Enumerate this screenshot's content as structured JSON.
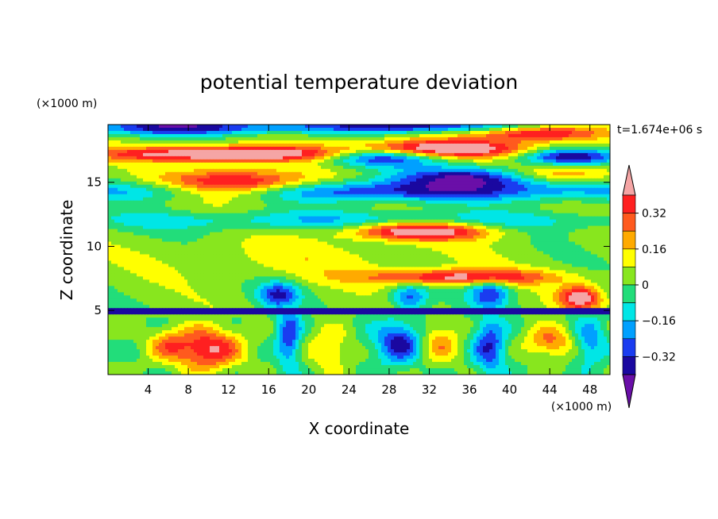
{
  "chart_data": {
    "type": "heatmap",
    "title": "potential temperature deviation",
    "xlabel": "X coordinate",
    "ylabel": "Z coordinate",
    "x_units": "(×1000 m)",
    "y_units": "(×1000 m)",
    "time_label": "t=1.674e+06 s",
    "xlim": [
      0,
      50
    ],
    "ylim": [
      0,
      19.5
    ],
    "x_ticks": [
      "4",
      "8",
      "12",
      "16",
      "20",
      "24",
      "28",
      "32",
      "36",
      "40",
      "44",
      "48"
    ],
    "y_ticks": [
      "5",
      "10",
      "15"
    ],
    "colorbar": {
      "tick_labels": [
        "0.32",
        "0.16",
        "0",
        "−0.16",
        "−0.32"
      ],
      "levels": [
        -0.4,
        -0.32,
        -0.24,
        -0.16,
        -0.08,
        0,
        0.08,
        0.16,
        0.24,
        0.32,
        0.4
      ],
      "colors": [
        "#6a0fa8",
        "#1a08a0",
        "#1a3cf0",
        "#00a0ff",
        "#00e6e6",
        "#22dd7a",
        "#88e61e",
        "#ffff00",
        "#ffaa00",
        "#ff5a1e",
        "#ff2020",
        "#f5a5a5"
      ],
      "extend": "both"
    },
    "data_description_note": null
  }
}
